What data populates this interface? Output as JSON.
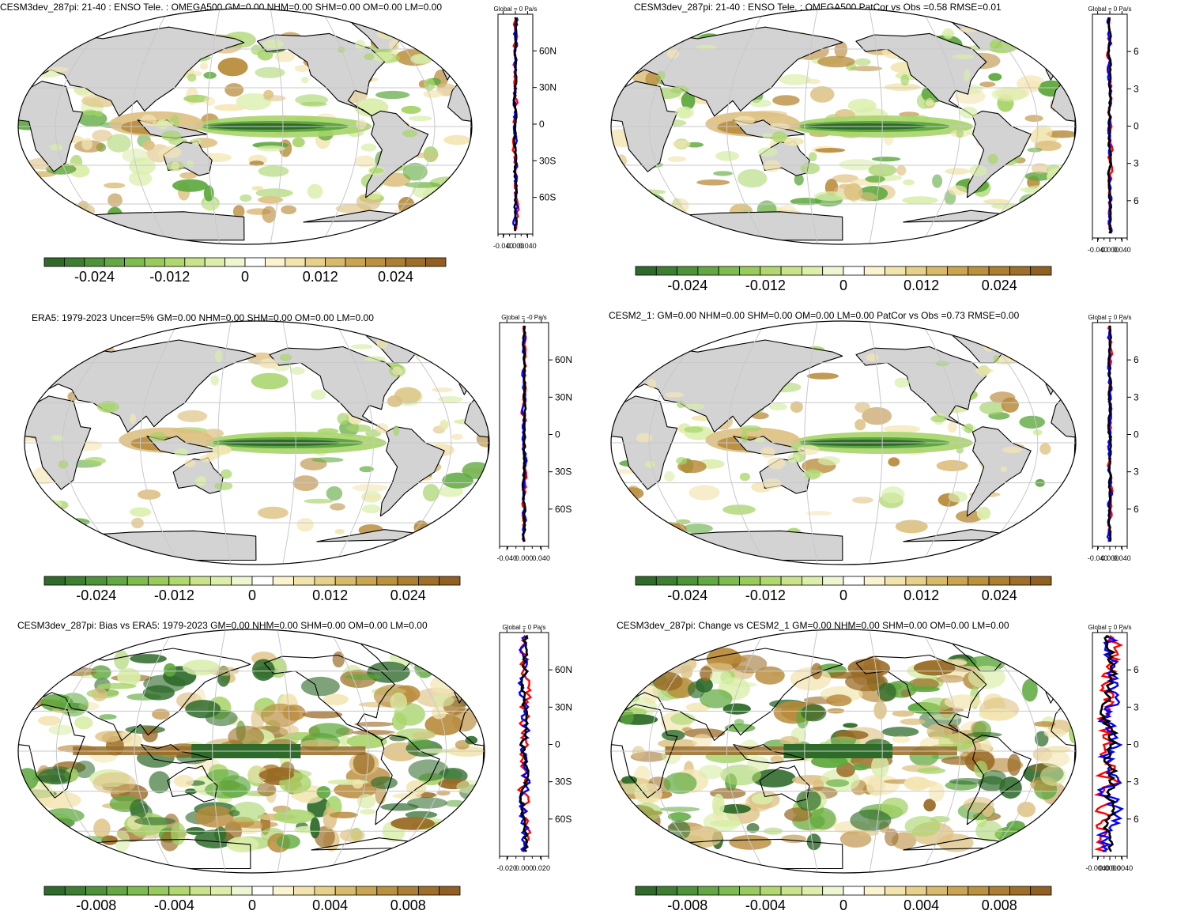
{
  "colors": {
    "dark_green": "#2e6b2a",
    "green": "#5ca83c",
    "light_green": "#a7d46a",
    "pale_green": "#d9eea9",
    "white": "#ffffff",
    "pale_tan": "#f3e6b3",
    "tan": "#ddc080",
    "brown": "#b98c3c",
    "dark_brown": "#9a6b26",
    "land": "#d3d3d3"
  },
  "colorbar_colors": [
    "#2f6a2b",
    "#3d7e33",
    "#4e933a",
    "#63a843",
    "#7ebc4f",
    "#98cb5c",
    "#b1d86e",
    "#c8e389",
    "#ddeeab",
    "#edf6d1",
    "#ffffff",
    "#fbf3d0",
    "#f2e4ad",
    "#e6d08a",
    "#d8ba6b",
    "#c9a552",
    "#ba913f",
    "#ac7f33",
    "#9e6f29",
    "#915f21"
  ],
  "panels": [
    {
      "title": "CESM3dev_287pi: 21-40 : ENSO Tele. : OMEGA500 GM=0.00 NHM=0.00 SHM=0.00 OM=0.00 LM=0.00",
      "profile_title": "Global = 0 Pa/s",
      "lat_ticks": [
        "60N",
        "30N",
        "0",
        "30S",
        "60S"
      ],
      "x_ticks": [
        "-0.040",
        "0.000",
        "0.040"
      ],
      "colorbar_labels": [
        "-0.024",
        "-0.012",
        "0",
        "0.012",
        "0.024"
      ]
    },
    {
      "title": "CESM3dev_287pi: 21-40 : ENSO Tele. : OMEGA500 PatCor vs Obs =0.58 RMSE=0.01",
      "profile_title": "Global = 0 Pa/s",
      "lat_ticks": [
        "6",
        "3",
        "0",
        "3",
        "6"
      ],
      "x_ticks": [
        "-0.040",
        "0.000",
        "0.040"
      ],
      "colorbar_labels": [
        "-0.024",
        "-0.012",
        "0",
        "0.012",
        "0.024"
      ]
    },
    {
      "title": "ERA5: 1979-2023 Uncer=5% GM=0.00 NHM=0.00 SHM=0.00 OM=0.00 LM=0.00",
      "profile_title": "Global = -0 Pa/s",
      "lat_ticks": [
        "60N",
        "30N",
        "0",
        "30S",
        "60S"
      ],
      "x_ticks": [
        "-0.040",
        "0.000",
        "0.040"
      ],
      "colorbar_labels": [
        "-0.024",
        "-0.012",
        "0",
        "0.012",
        "0.024"
      ]
    },
    {
      "title": "CESM2_1: GM=0.00 NHM=0.00 SHM=0.00 OM=0.00 LM=0.00 PatCor vs Obs =0.73 RMSE=0.00",
      "profile_title": "Global = 0 Pa/s",
      "lat_ticks": [
        "6",
        "3",
        "0",
        "3",
        "6"
      ],
      "x_ticks": [
        "-0.040",
        "0.000",
        "0.040"
      ],
      "colorbar_labels": [
        "-0.024",
        "-0.012",
        "0",
        "0.012",
        "0.024"
      ]
    },
    {
      "title": "CESM3dev_287pi: Bias vs ERA5: 1979-2023 GM=0.00 NHM=0.00 SHM=0.00 OM=0.00 LM=0.00",
      "profile_title": "Global = 0 Pa/s",
      "lat_ticks": [
        "60N",
        "30N",
        "0",
        "30S",
        "60S"
      ],
      "x_ticks": [
        "-0.020",
        "0.000",
        "0.020"
      ],
      "colorbar_labels": [
        "-0.008",
        "-0.004",
        "0",
        "0.004",
        "0.008"
      ]
    },
    {
      "title": "CESM3dev_287pi: Change vs CESM2_1 GM=0.00 NHM=0.00 SHM=0.00 OM=0.00 LM=0.00",
      "profile_title": "Global = 0 Pa/s",
      "lat_ticks": [
        "6",
        "3",
        "0",
        "3",
        "6"
      ],
      "x_ticks": [
        "-0.0040",
        "0.0000",
        "0.0040"
      ],
      "colorbar_labels": [
        "-0.008",
        "-0.004",
        "0",
        "0.004",
        "0.008"
      ]
    }
  ]
}
